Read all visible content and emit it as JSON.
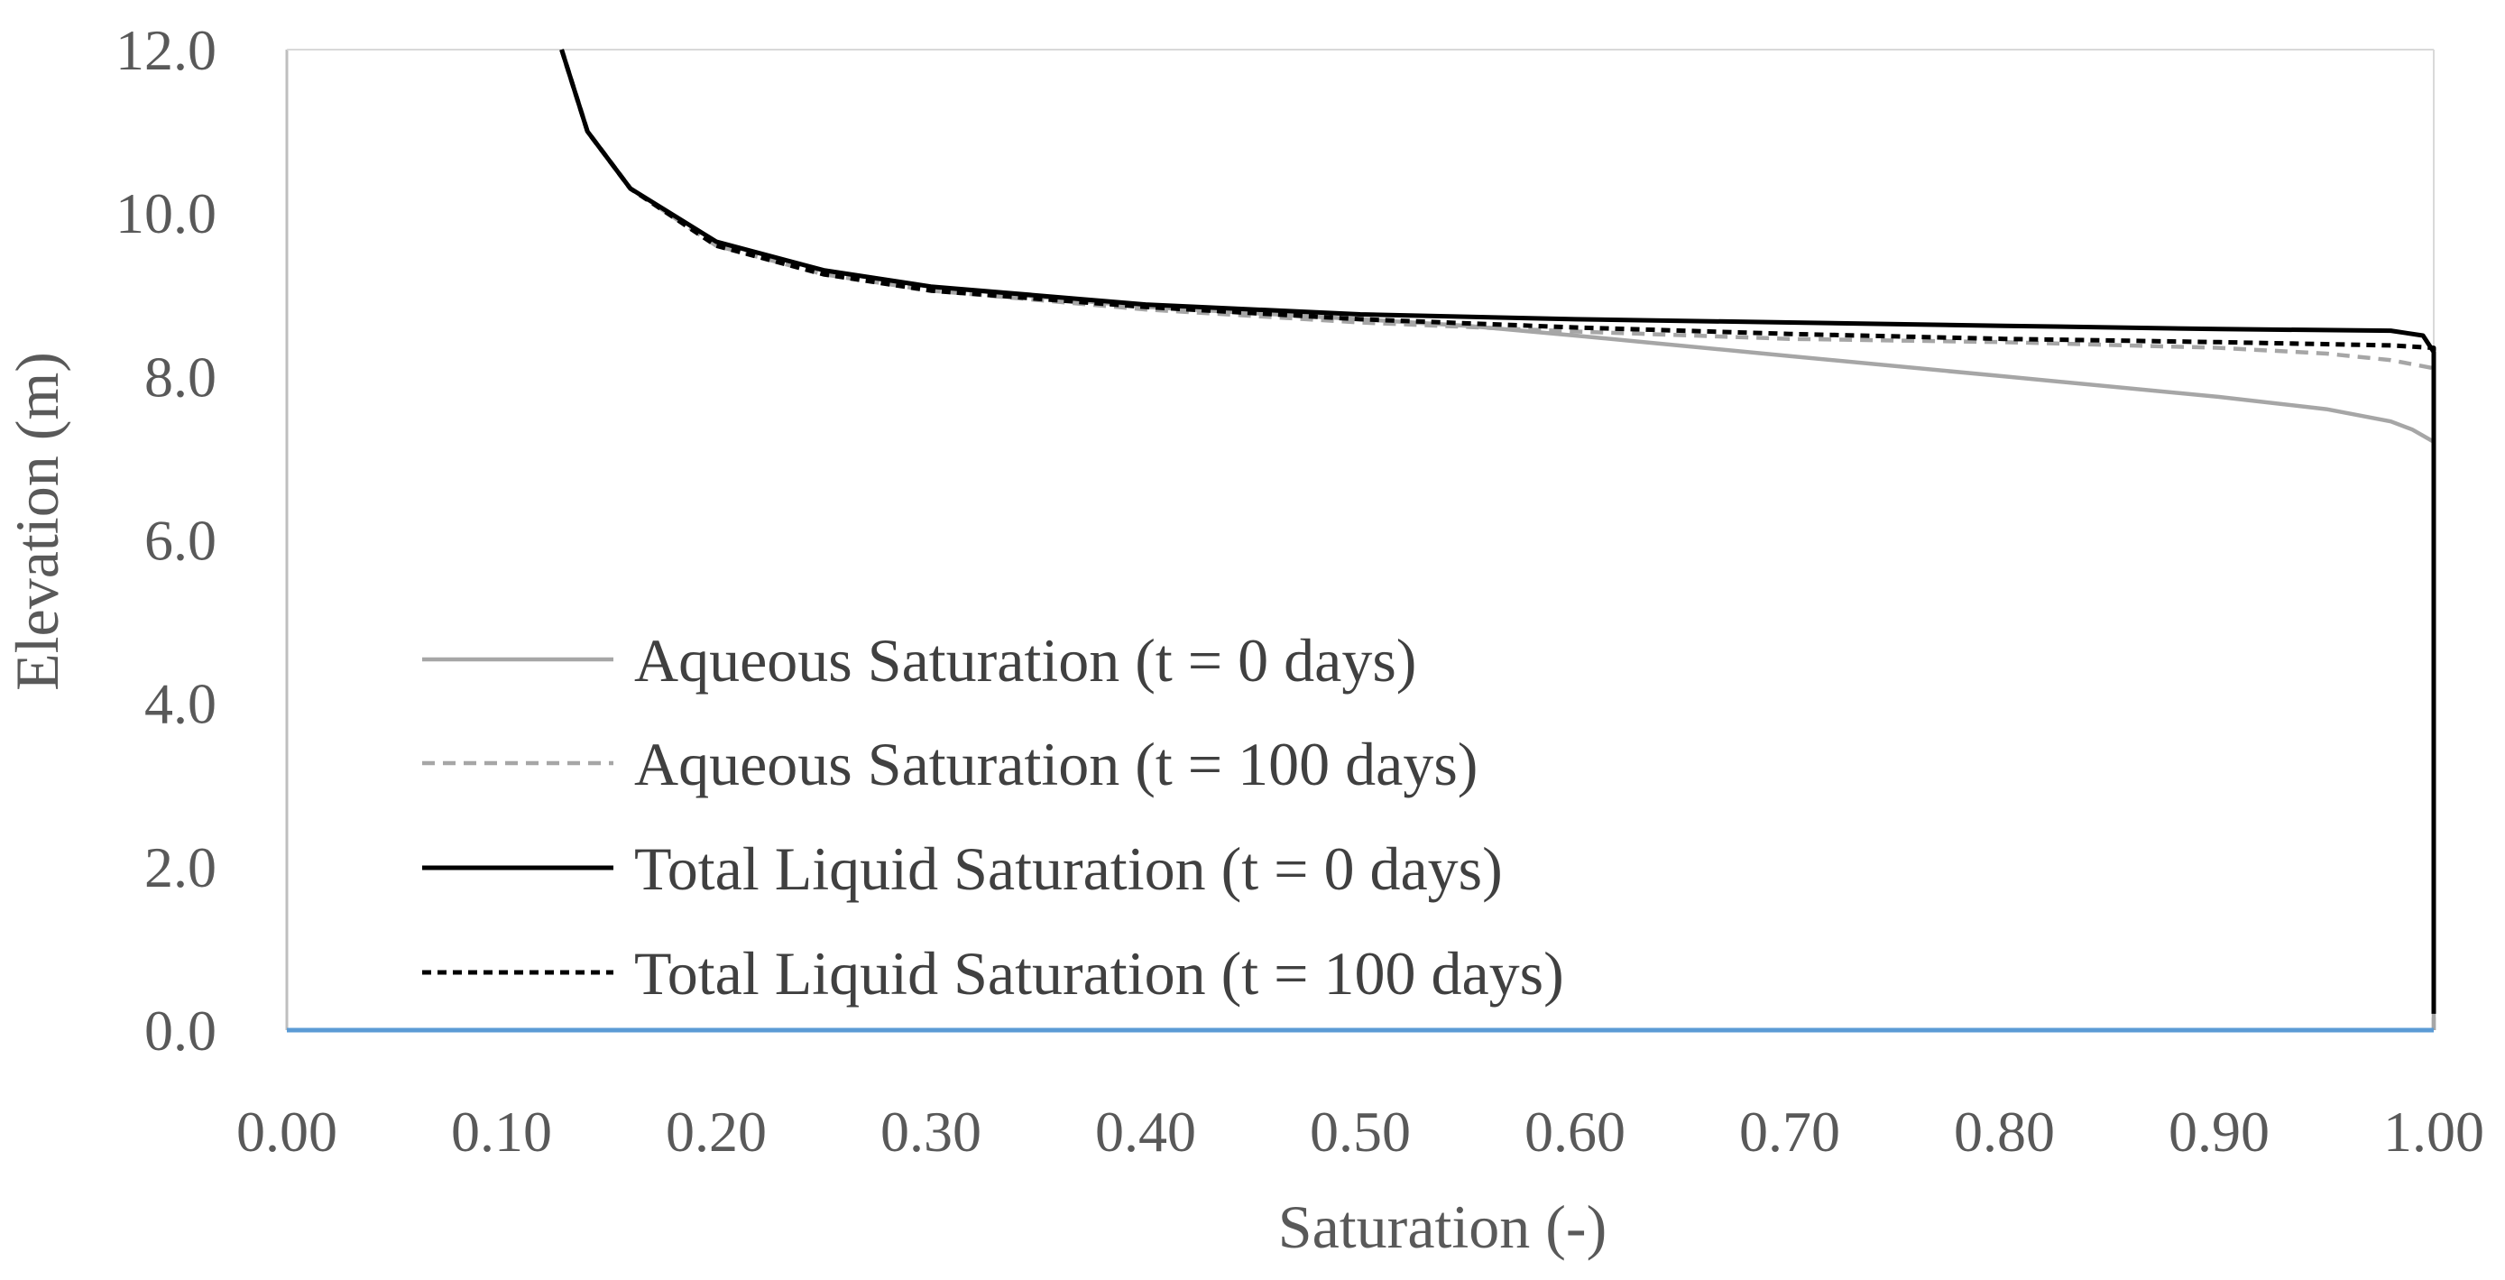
{
  "chart_data": {
    "type": "line",
    "title": "",
    "xlabel": "Saturation (-)",
    "ylabel": "Elevation (m)",
    "xlim": [
      0.0,
      1.0
    ],
    "ylim": [
      0.0,
      12.0
    ],
    "x_ticks": [
      "0.00",
      "0.10",
      "0.20",
      "0.30",
      "0.40",
      "0.50",
      "0.60",
      "0.70",
      "0.80",
      "0.90",
      "1.00"
    ],
    "y_ticks": [
      "0.0",
      "2.0",
      "4.0",
      "6.0",
      "8.0",
      "10.0",
      "12.0"
    ],
    "grid": false,
    "legend_position": "lower-left",
    "series": [
      {
        "name": "Aqueous Saturation (t = 0 days)",
        "color": "#a6a6a6",
        "dash": "solid",
        "points": [
          [
            0.128,
            12.0
          ],
          [
            0.14,
            11.0
          ],
          [
            0.16,
            10.3
          ],
          [
            0.2,
            9.65
          ],
          [
            0.25,
            9.3
          ],
          [
            0.3,
            9.1
          ],
          [
            0.4,
            8.85
          ],
          [
            0.5,
            8.7
          ],
          [
            0.55,
            8.62
          ],
          [
            0.6,
            8.5
          ],
          [
            0.7,
            8.25
          ],
          [
            0.8,
            8.0
          ],
          [
            0.9,
            7.75
          ],
          [
            0.95,
            7.6
          ],
          [
            0.98,
            7.45
          ],
          [
            0.99,
            7.35
          ],
          [
            1.0,
            7.2
          ],
          [
            1.0,
            0.0
          ]
        ]
      },
      {
        "name": "Aqueous Saturation (t = 100 days)",
        "color": "#a6a6a6",
        "dash": "dashed",
        "points": [
          [
            0.128,
            12.0
          ],
          [
            0.14,
            11.0
          ],
          [
            0.16,
            10.3
          ],
          [
            0.2,
            9.6
          ],
          [
            0.25,
            9.25
          ],
          [
            0.3,
            9.05
          ],
          [
            0.4,
            8.82
          ],
          [
            0.5,
            8.66
          ],
          [
            0.6,
            8.55
          ],
          [
            0.7,
            8.46
          ],
          [
            0.8,
            8.42
          ],
          [
            0.9,
            8.35
          ],
          [
            0.95,
            8.28
          ],
          [
            0.98,
            8.2
          ],
          [
            1.0,
            8.1
          ],
          [
            1.0,
            0.0
          ]
        ]
      },
      {
        "name": "Total Liquid Saturation (t = 0 days)",
        "color": "#000000",
        "dash": "solid",
        "points": [
          [
            0.128,
            12.0
          ],
          [
            0.14,
            11.0
          ],
          [
            0.16,
            10.3
          ],
          [
            0.2,
            9.65
          ],
          [
            0.25,
            9.3
          ],
          [
            0.3,
            9.1
          ],
          [
            0.4,
            8.88
          ],
          [
            0.5,
            8.76
          ],
          [
            0.6,
            8.7
          ],
          [
            0.7,
            8.66
          ],
          [
            0.8,
            8.62
          ],
          [
            0.9,
            8.58
          ],
          [
            0.98,
            8.56
          ],
          [
            0.995,
            8.5
          ],
          [
            1.0,
            8.3
          ],
          [
            1.0,
            0.2
          ]
        ]
      },
      {
        "name": "Total Liquid Saturation (t = 100 days)",
        "color": "#000000",
        "dash": "dotted",
        "points": [
          [
            0.128,
            12.0
          ],
          [
            0.14,
            11.0
          ],
          [
            0.16,
            10.3
          ],
          [
            0.2,
            9.6
          ],
          [
            0.25,
            9.25
          ],
          [
            0.3,
            9.05
          ],
          [
            0.4,
            8.85
          ],
          [
            0.5,
            8.7
          ],
          [
            0.6,
            8.6
          ],
          [
            0.7,
            8.52
          ],
          [
            0.8,
            8.46
          ],
          [
            0.9,
            8.42
          ],
          [
            0.98,
            8.38
          ],
          [
            1.0,
            8.35
          ],
          [
            1.0,
            8.0
          ]
        ]
      }
    ],
    "baseline": {
      "y": 0.0,
      "color": "#5b9bd5"
    }
  }
}
